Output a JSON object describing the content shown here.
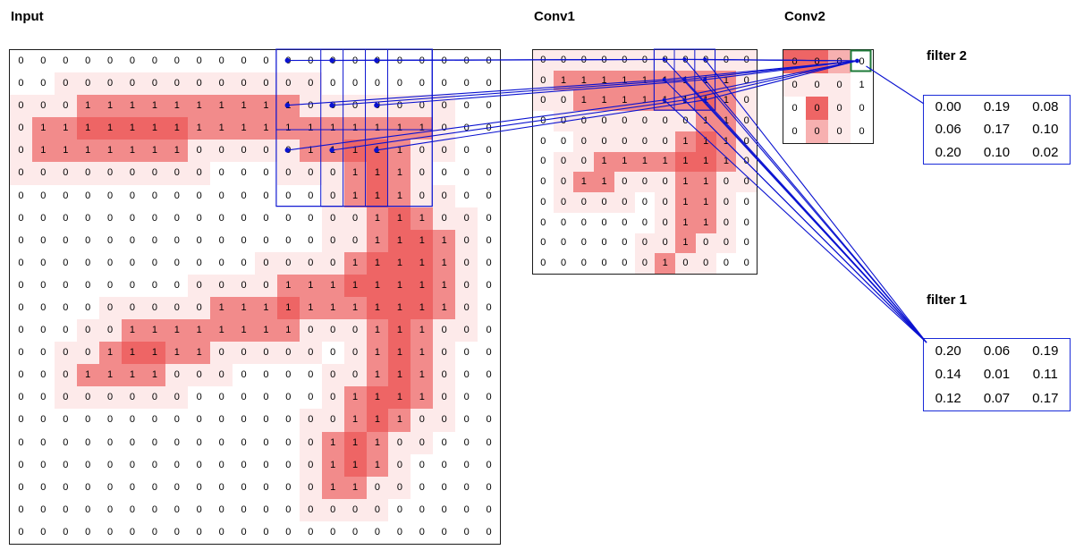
{
  "titles": {
    "input": "Input",
    "conv1": "Conv1",
    "conv2": "Conv2"
  },
  "colors": {
    "line": "#0a12d0",
    "green": "#1e7a38",
    "filter_border": "#1a2bd8",
    "grid_border": "#1b1b1b",
    "levels": [
      "#ffffff",
      "#fdeaea",
      "#f7b0b0",
      "#f28b8b",
      "#ee6565"
    ]
  },
  "input": {
    "rows": 22,
    "cols": 22,
    "values": [
      "0000000000000000000000",
      "0000000000000000000000",
      "0001111111111000000000",
      "0111111111111111111000",
      "0111111100000111110000",
      "0000000000000001110000",
      "0000000000000001110000",
      "0000000000000000111000",
      "0000000000000000111100",
      "0000000000000001111100",
      "0000000000001111111100",
      "0000000001111111111100",
      "0000011111111000111000",
      "0000111110000000111000",
      "0001111000000000111000",
      "0000000000000001111000",
      "0000000000000001110000",
      "0000000000000011100000",
      "0000000000000011100000",
      "0000000000000011000000",
      "0000000000000000000000",
      "0000000000000000000000"
    ]
  },
  "conv1": {
    "rows": 11,
    "cols": 11,
    "values": [
      "00000000000",
      "01111111110",
      "00111111110",
      "00000000110",
      "00000001110",
      "00011111110",
      "00110001100",
      "00000001100",
      "00000001100",
      "00000001000",
      "00000010000"
    ]
  },
  "conv2": {
    "rows": 4,
    "cols": 4,
    "values": [
      "0000",
      "0001",
      "0000",
      "0000"
    ],
    "intensity": [
      "4420",
      "1110",
      "0410",
      "0210"
    ],
    "highlight": {
      "row": 0,
      "col": 3
    }
  },
  "filter2": {
    "label": "filter 2",
    "values": [
      [
        "0.00",
        "0.19",
        "0.08"
      ],
      [
        "0.06",
        "0.17",
        "0.10"
      ],
      [
        "0.20",
        "0.10",
        "0.02"
      ]
    ]
  },
  "filter1": {
    "label": "filter 1",
    "values": [
      [
        "0.20",
        "0.06",
        "0.19"
      ],
      [
        "0.14",
        "0.01",
        "0.11"
      ],
      [
        "0.12",
        "0.07",
        "0.17"
      ]
    ]
  },
  "receptive": {
    "input_window": {
      "row": 0,
      "col": 12,
      "rows": 7,
      "cols": 7
    },
    "input_strips": [
      12,
      14,
      16
    ],
    "conv1_window": {
      "row": 0,
      "col": 6,
      "rows": 3,
      "cols": 3
    }
  }
}
